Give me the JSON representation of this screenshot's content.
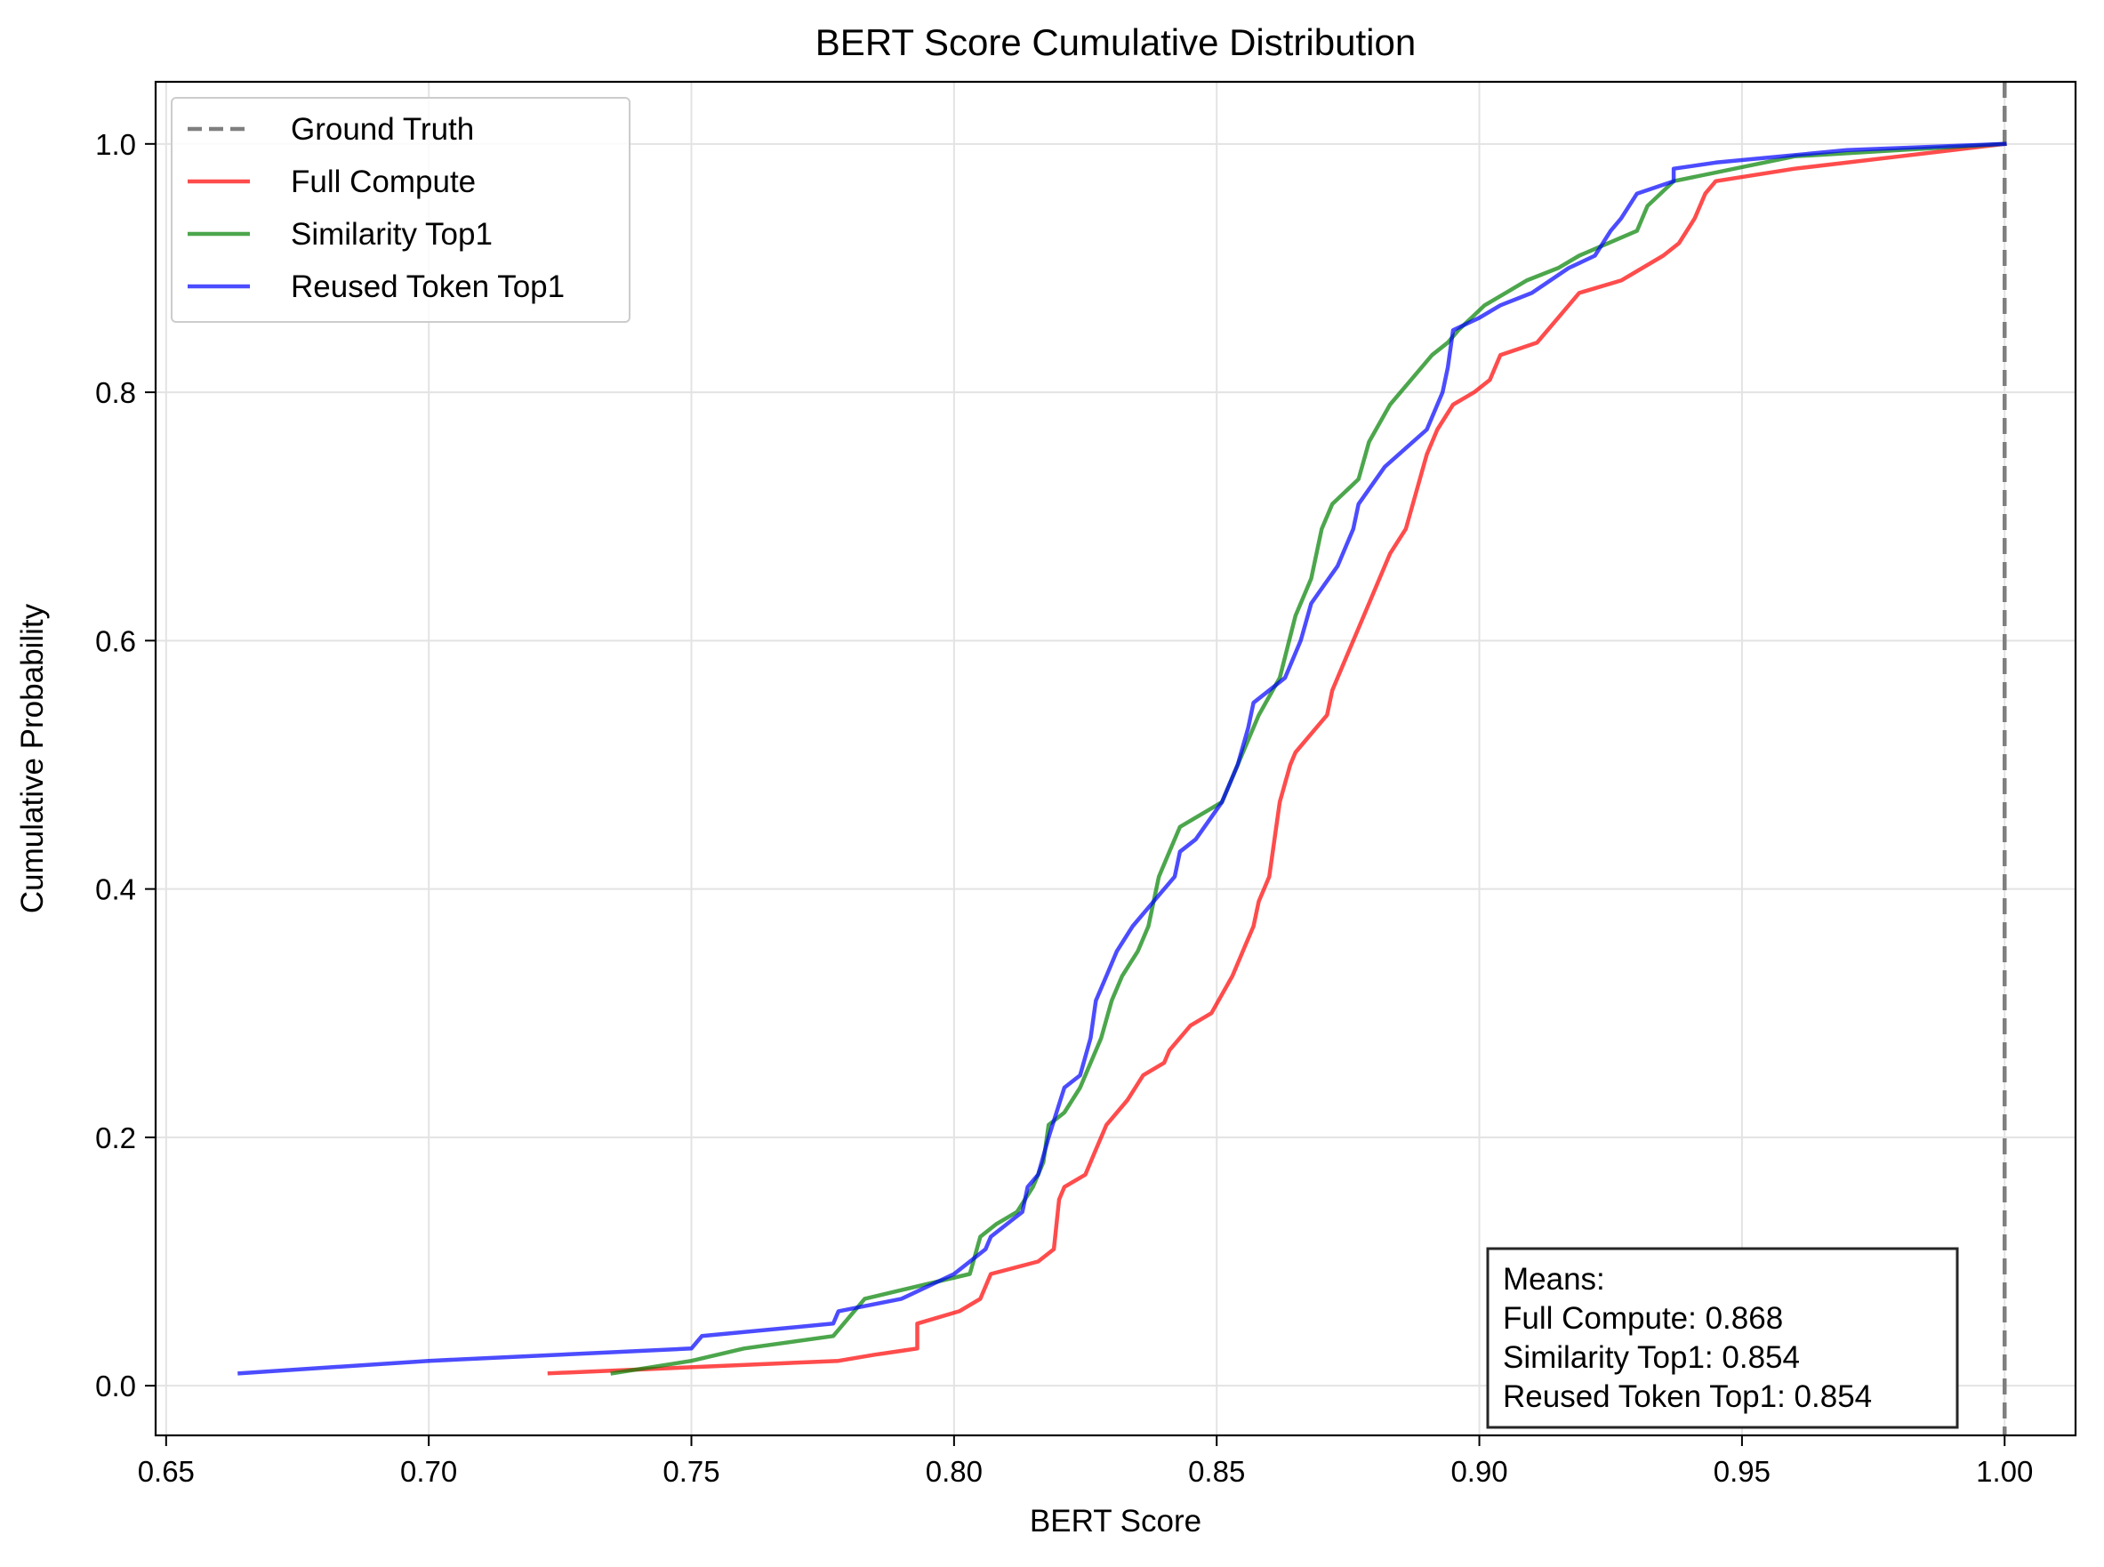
{
  "chart_data": {
    "type": "line",
    "title": "BERT Score Cumulative Distribution",
    "xlabel": "BERT Score",
    "ylabel": "Cumulative Probability",
    "xlim": [
      0.648,
      1.0135
    ],
    "ylim": [
      -0.04,
      1.05
    ],
    "xticks": [
      "0.65",
      "0.70",
      "0.75",
      "0.80",
      "0.85",
      "0.90",
      "0.95",
      "1.00"
    ],
    "yticks": [
      "0.0",
      "0.2",
      "0.4",
      "0.6",
      "0.8",
      "1.0"
    ],
    "grid": true,
    "legend_position": "upper-left",
    "reference_line": {
      "name": "Ground Truth",
      "x": 1.0,
      "color": "#7f7f7f",
      "style": "dashed"
    },
    "series": [
      {
        "name": "Full Compute",
        "color": "#ff0000",
        "points": [
          [
            0.723,
            0.01
          ],
          [
            0.778,
            0.02
          ],
          [
            0.785,
            0.025
          ],
          [
            0.793,
            0.03
          ],
          [
            0.793,
            0.05
          ],
          [
            0.801,
            0.06
          ],
          [
            0.805,
            0.07
          ],
          [
            0.807,
            0.09
          ],
          [
            0.816,
            0.1
          ],
          [
            0.819,
            0.11
          ],
          [
            0.82,
            0.15
          ],
          [
            0.821,
            0.16
          ],
          [
            0.825,
            0.17
          ],
          [
            0.827,
            0.19
          ],
          [
            0.829,
            0.21
          ],
          [
            0.833,
            0.23
          ],
          [
            0.836,
            0.25
          ],
          [
            0.84,
            0.26
          ],
          [
            0.841,
            0.27
          ],
          [
            0.845,
            0.29
          ],
          [
            0.849,
            0.3
          ],
          [
            0.853,
            0.33
          ],
          [
            0.855,
            0.35
          ],
          [
            0.857,
            0.37
          ],
          [
            0.858,
            0.39
          ],
          [
            0.86,
            0.41
          ],
          [
            0.861,
            0.44
          ],
          [
            0.862,
            0.47
          ],
          [
            0.864,
            0.5
          ],
          [
            0.865,
            0.51
          ],
          [
            0.869,
            0.53
          ],
          [
            0.871,
            0.54
          ],
          [
            0.872,
            0.56
          ],
          [
            0.875,
            0.59
          ],
          [
            0.877,
            0.61
          ],
          [
            0.879,
            0.63
          ],
          [
            0.881,
            0.65
          ],
          [
            0.883,
            0.67
          ],
          [
            0.886,
            0.69
          ],
          [
            0.888,
            0.72
          ],
          [
            0.89,
            0.75
          ],
          [
            0.892,
            0.77
          ],
          [
            0.895,
            0.79
          ],
          [
            0.899,
            0.8
          ],
          [
            0.902,
            0.81
          ],
          [
            0.904,
            0.83
          ],
          [
            0.911,
            0.84
          ],
          [
            0.915,
            0.86
          ],
          [
            0.919,
            0.88
          ],
          [
            0.927,
            0.89
          ],
          [
            0.935,
            0.91
          ],
          [
            0.938,
            0.92
          ],
          [
            0.941,
            0.94
          ],
          [
            0.943,
            0.96
          ],
          [
            0.945,
            0.97
          ],
          [
            0.96,
            0.98
          ],
          [
            0.98,
            0.99
          ],
          [
            1.0,
            1.0
          ]
        ]
      },
      {
        "name": "Similarity Top1",
        "color": "#008000",
        "points": [
          [
            0.735,
            0.01
          ],
          [
            0.75,
            0.02
          ],
          [
            0.76,
            0.03
          ],
          [
            0.777,
            0.04
          ],
          [
            0.783,
            0.07
          ],
          [
            0.803,
            0.09
          ],
          [
            0.805,
            0.12
          ],
          [
            0.808,
            0.13
          ],
          [
            0.812,
            0.14
          ],
          [
            0.815,
            0.16
          ],
          [
            0.817,
            0.18
          ],
          [
            0.818,
            0.21
          ],
          [
            0.821,
            0.22
          ],
          [
            0.824,
            0.24
          ],
          [
            0.826,
            0.26
          ],
          [
            0.828,
            0.28
          ],
          [
            0.83,
            0.31
          ],
          [
            0.832,
            0.33
          ],
          [
            0.835,
            0.35
          ],
          [
            0.837,
            0.37
          ],
          [
            0.839,
            0.41
          ],
          [
            0.841,
            0.43
          ],
          [
            0.843,
            0.45
          ],
          [
            0.851,
            0.47
          ],
          [
            0.854,
            0.5
          ],
          [
            0.858,
            0.54
          ],
          [
            0.862,
            0.57
          ],
          [
            0.865,
            0.62
          ],
          [
            0.868,
            0.65
          ],
          [
            0.87,
            0.69
          ],
          [
            0.872,
            0.71
          ],
          [
            0.877,
            0.73
          ],
          [
            0.879,
            0.76
          ],
          [
            0.883,
            0.79
          ],
          [
            0.887,
            0.81
          ],
          [
            0.891,
            0.83
          ],
          [
            0.894,
            0.84
          ],
          [
            0.896,
            0.85
          ],
          [
            0.901,
            0.87
          ],
          [
            0.905,
            0.88
          ],
          [
            0.909,
            0.89
          ],
          [
            0.915,
            0.9
          ],
          [
            0.919,
            0.91
          ],
          [
            0.93,
            0.93
          ],
          [
            0.932,
            0.95
          ],
          [
            0.937,
            0.97
          ],
          [
            0.96,
            0.99
          ],
          [
            0.98,
            0.995
          ],
          [
            1.0,
            1.0
          ]
        ]
      },
      {
        "name": "Reused Token Top1",
        "color": "#0000ff",
        "points": [
          [
            0.664,
            0.01
          ],
          [
            0.7,
            0.02
          ],
          [
            0.75,
            0.03
          ],
          [
            0.752,
            0.04
          ],
          [
            0.777,
            0.05
          ],
          [
            0.778,
            0.06
          ],
          [
            0.79,
            0.07
          ],
          [
            0.8,
            0.09
          ],
          [
            0.806,
            0.11
          ],
          [
            0.807,
            0.12
          ],
          [
            0.813,
            0.14
          ],
          [
            0.814,
            0.16
          ],
          [
            0.816,
            0.17
          ],
          [
            0.818,
            0.2
          ],
          [
            0.821,
            0.24
          ],
          [
            0.824,
            0.25
          ],
          [
            0.826,
            0.28
          ],
          [
            0.827,
            0.31
          ],
          [
            0.829,
            0.33
          ],
          [
            0.831,
            0.35
          ],
          [
            0.834,
            0.37
          ],
          [
            0.838,
            0.39
          ],
          [
            0.842,
            0.41
          ],
          [
            0.843,
            0.43
          ],
          [
            0.846,
            0.44
          ],
          [
            0.851,
            0.47
          ],
          [
            0.854,
            0.5
          ],
          [
            0.856,
            0.53
          ],
          [
            0.857,
            0.55
          ],
          [
            0.863,
            0.57
          ],
          [
            0.866,
            0.6
          ],
          [
            0.868,
            0.63
          ],
          [
            0.873,
            0.66
          ],
          [
            0.876,
            0.69
          ],
          [
            0.877,
            0.71
          ],
          [
            0.882,
            0.74
          ],
          [
            0.89,
            0.77
          ],
          [
            0.893,
            0.8
          ],
          [
            0.894,
            0.82
          ],
          [
            0.895,
            0.85
          ],
          [
            0.9,
            0.86
          ],
          [
            0.904,
            0.87
          ],
          [
            0.91,
            0.88
          ],
          [
            0.917,
            0.9
          ],
          [
            0.922,
            0.91
          ],
          [
            0.925,
            0.93
          ],
          [
            0.927,
            0.94
          ],
          [
            0.93,
            0.96
          ],
          [
            0.937,
            0.97
          ],
          [
            0.937,
            0.98
          ],
          [
            0.945,
            0.985
          ],
          [
            0.97,
            0.995
          ],
          [
            1.0,
            1.0
          ]
        ]
      }
    ],
    "annotation": {
      "lines": [
        "Means:",
        "Full Compute: 0.868",
        "Similarity Top1: 0.854",
        "Reused Token Top1: 0.854"
      ]
    }
  }
}
